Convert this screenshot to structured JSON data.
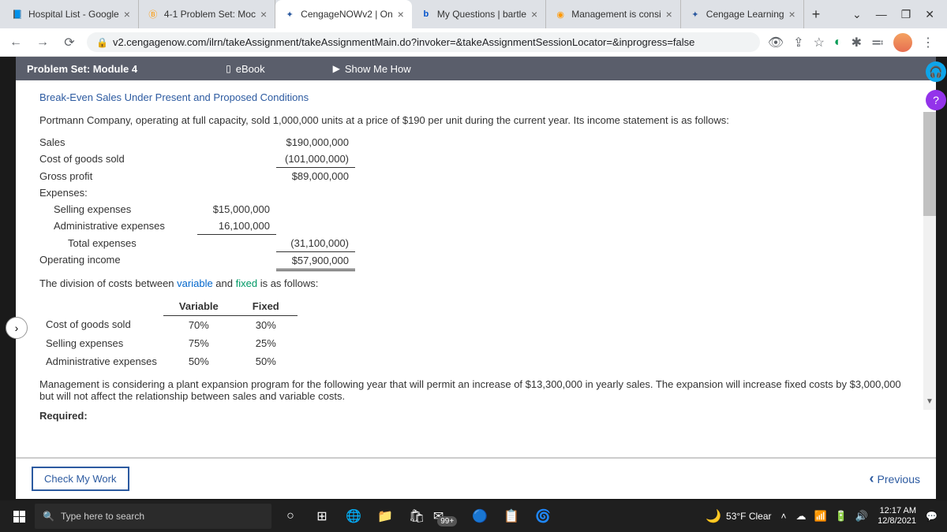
{
  "browser": {
    "tabs": [
      {
        "title": "Hospital List - Google",
        "icon": "📘",
        "icon_bg": "#4285f4"
      },
      {
        "title": "4-1 Problem Set: Moc",
        "icon": "Ⓑ",
        "icon_bg": "#ff9800"
      },
      {
        "title": "CengageNOWv2 | On",
        "icon": "✦",
        "icon_bg": "#fff"
      },
      {
        "title": "My Questions | bartle",
        "icon": "b",
        "icon_bg": "#0052cc"
      },
      {
        "title": "Management is consi",
        "icon": "◉",
        "icon_bg": "#ff9800"
      },
      {
        "title": "Cengage Learning",
        "icon": "✦",
        "icon_bg": "#fff"
      }
    ],
    "active_tab": 2,
    "url": "v2.cengagenow.com/ilrn/takeAssignment/takeAssignmentMain.do?invoker=&takeAssignmentSessionLocator=&inprogress=false"
  },
  "assignment": {
    "title": "Problem Set: Module 4",
    "ebook_label": "eBook",
    "show_me_label": "Show Me How",
    "problem_title": "Break-Even Sales Under Present and Proposed Conditions",
    "intro": "Portmann Company, operating at full capacity, sold 1,000,000 units at a price of $190 per unit during the current year. Its income statement is as follows:",
    "income": {
      "sales_label": "Sales",
      "sales": "$190,000,000",
      "cogs_label": "Cost of goods sold",
      "cogs": "(101,000,000)",
      "gross_label": "Gross profit",
      "gross": "$89,000,000",
      "expenses_label": "Expenses:",
      "selling_label": "Selling expenses",
      "selling": "$15,000,000",
      "admin_label": "Administrative expenses",
      "admin": "16,100,000",
      "total_exp_label": "Total expenses",
      "total_exp": "(31,100,000)",
      "op_income_label": "Operating income",
      "op_income": "$57,900,000"
    },
    "division_pre": "The division of costs between ",
    "variable_word": "variable",
    "and_word": " and ",
    "fixed_word": "fixed",
    "division_post": " is as follows:",
    "cost_split": {
      "var_header": "Variable",
      "fixed_header": "Fixed",
      "rows": [
        {
          "label": "Cost of goods sold",
          "var": "70%",
          "fixed": "30%"
        },
        {
          "label": "Selling expenses",
          "var": "75%",
          "fixed": "25%"
        },
        {
          "label": "Administrative expenses",
          "var": "50%",
          "fixed": "50%"
        }
      ]
    },
    "mgmt_text": "Management is considering a plant expansion program for the following year that will permit an increase of $13,300,000 in yearly sales. The expansion will increase fixed costs by $3,000,000 but will not affect the relationship between sales and variable costs.",
    "required_label": "Required:",
    "check_label": "Check My Work",
    "previous_label": "Previous"
  },
  "taskbar": {
    "search_placeholder": "Type here to search",
    "weather": "53°F Clear",
    "time": "12:17 AM",
    "date": "12/8/2021",
    "mail_badge": "99+"
  }
}
